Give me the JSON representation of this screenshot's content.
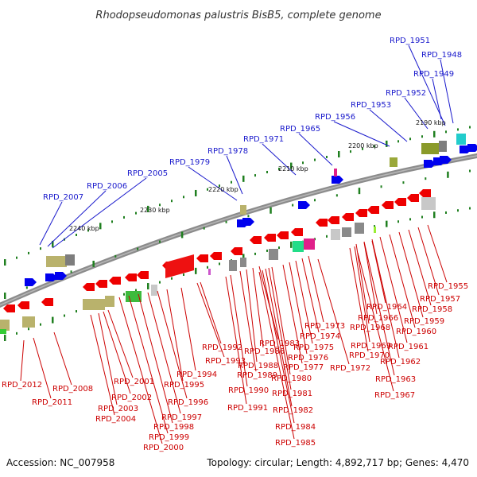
{
  "title": "Rhodopseudomonas palustris BisB5, complete genome",
  "footer": {
    "accession": "Accession: NC_007958",
    "topology": "Topology: circular; Length: 4,892,717 bp; Genes: 4,470"
  },
  "colors": {
    "label_top": "#1a1acc",
    "label_bottom": "#cc0000",
    "backbone": "#8c8c8c",
    "tick": "#1f7f1f",
    "forward_gene": "#0000ee",
    "reverse_gene": "#ee0000"
  },
  "kbp_labels": [
    "2190 kbp",
    "2200 kbp",
    "2210 kbp",
    "2220 kbp",
    "2230 kbp",
    "2240 kbp"
  ],
  "top_labels": [
    "RPD_1951",
    "RPD_1948",
    "RPD_1949",
    "RPD_1952",
    "RPD_1953",
    "RPD_1956",
    "RPD_1965",
    "RPD_1971",
    "RPD_1978",
    "RPD_1979",
    "RPD_2005",
    "RPD_2006",
    "RPD_2007"
  ],
  "bottom_labels": [
    "RPD_1955",
    "RPD_1957",
    "RPD_1958",
    "RPD_1959",
    "RPD_1960",
    "RPD_1961",
    "RPD_1962",
    "RPD_1963",
    "RPD_1964",
    "RPD_1966",
    "RPD_1968",
    "RPD_1969",
    "RPD_1970",
    "RPD_1967",
    "RPD_1973",
    "RPD_1974",
    "RPD_1975",
    "RPD_1976",
    "RPD_1977",
    "RPD_1972",
    "RPD_1983",
    "RPD_1986",
    "RPD_1988",
    "RPD_1989",
    "RPD_1980",
    "RPD_1981",
    "RPD_1990",
    "RPD_1982",
    "RPD_1991",
    "RPD_1984",
    "RPD_1985",
    "RPD_1992",
    "RPD_1993",
    "RPD_1994",
    "RPD_1995",
    "RPD_1996",
    "RPD_1997",
    "RPD_1998",
    "RPD_1999",
    "RPD_2000",
    "RPD_2001",
    "RPD_2002",
    "RPD_2003",
    "RPD_2004",
    "RPD_2008",
    "RPD_2011",
    "RPD_2012"
  ]
}
